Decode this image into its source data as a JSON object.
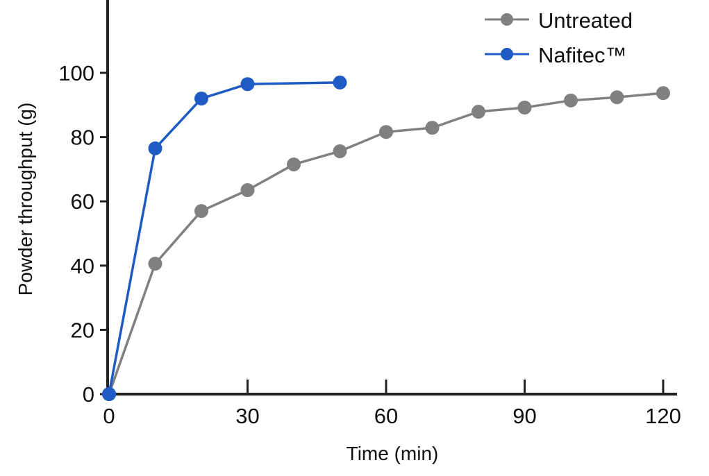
{
  "chart_data": {
    "type": "line",
    "title": "",
    "xlabel": "Time (min)",
    "ylabel": "Powder throughput (g)",
    "xlim": [
      0,
      120
    ],
    "ylim": [
      0,
      100
    ],
    "xticks": [
      0,
      30,
      60,
      90,
      120
    ],
    "yticks": [
      0,
      20,
      40,
      60,
      80,
      100
    ],
    "grid": false,
    "legend_position": "top-right",
    "series": [
      {
        "name": "Untreated",
        "color": "#808080",
        "x": [
          0,
          10,
          20,
          30,
          40,
          50,
          60,
          70,
          80,
          90,
          100,
          110,
          120
        ],
        "y": [
          0,
          40.6,
          57.0,
          63.5,
          71.5,
          75.6,
          81.6,
          82.9,
          87.9,
          89.2,
          91.4,
          92.4,
          93.7
        ]
      },
      {
        "name": "Nafitec™",
        "color": "#1f5bc4",
        "x": [
          0,
          10,
          20,
          30,
          50
        ],
        "y": [
          0,
          76.5,
          92.0,
          96.5,
          97.0
        ]
      }
    ]
  }
}
